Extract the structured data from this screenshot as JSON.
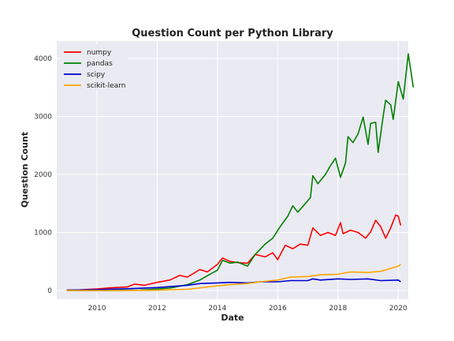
{
  "chart_data": {
    "type": "line",
    "title": "Question Count per Python Library",
    "xlabel": "Date",
    "ylabel": "Question Count",
    "xlim": [
      "2008-09",
      "2020-05"
    ],
    "ylim": [
      -150,
      4300
    ],
    "xticks": [
      "2010",
      "2012",
      "2014",
      "2016",
      "2018",
      "2020"
    ],
    "yticks": [
      0,
      1000,
      2000,
      3000,
      4000
    ],
    "grid": true,
    "legend_position": "top-left",
    "background_color": "#eaeaf2",
    "x_unit": "month",
    "series": [
      {
        "name": "numpy",
        "color": "#ff0000",
        "points": [
          [
            "2009-01",
            5
          ],
          [
            "2009-06",
            10
          ],
          [
            "2010-01",
            25
          ],
          [
            "2010-06",
            45
          ],
          [
            "2011-01",
            60
          ],
          [
            "2011-04",
            110
          ],
          [
            "2011-08",
            90
          ],
          [
            "2012-01",
            140
          ],
          [
            "2012-06",
            180
          ],
          [
            "2012-10",
            260
          ],
          [
            "2013-01",
            230
          ],
          [
            "2013-06",
            360
          ],
          [
            "2013-09",
            320
          ],
          [
            "2014-01",
            450
          ],
          [
            "2014-03",
            560
          ],
          [
            "2014-06",
            500
          ],
          [
            "2014-09",
            480
          ],
          [
            "2015-01",
            470
          ],
          [
            "2015-04",
            620
          ],
          [
            "2015-08",
            580
          ],
          [
            "2015-11",
            650
          ],
          [
            "2016-01",
            530
          ],
          [
            "2016-04",
            780
          ],
          [
            "2016-07",
            720
          ],
          [
            "2016-10",
            800
          ],
          [
            "2017-01",
            780
          ],
          [
            "2017-03",
            1080
          ],
          [
            "2017-06",
            950
          ],
          [
            "2017-09",
            1000
          ],
          [
            "2017-12",
            950
          ],
          [
            "2018-02",
            1170
          ],
          [
            "2018-03",
            980
          ],
          [
            "2018-06",
            1040
          ],
          [
            "2018-09",
            1000
          ],
          [
            "2018-12",
            900
          ],
          [
            "2019-02",
            1010
          ],
          [
            "2019-04",
            1210
          ],
          [
            "2019-06",
            1100
          ],
          [
            "2019-08",
            900
          ],
          [
            "2019-10",
            1080
          ],
          [
            "2019-12",
            1300
          ],
          [
            "2020-01",
            1280
          ],
          [
            "2020-02",
            1120
          ]
        ]
      },
      {
        "name": "pandas",
        "color": "#008000",
        "points": [
          [
            "2009-01",
            0
          ],
          [
            "2010-06",
            0
          ],
          [
            "2011-06",
            5
          ],
          [
            "2012-06",
            40
          ],
          [
            "2013-01",
            100
          ],
          [
            "2013-06",
            180
          ],
          [
            "2013-10",
            280
          ],
          [
            "2014-01",
            350
          ],
          [
            "2014-03",
            520
          ],
          [
            "2014-06",
            470
          ],
          [
            "2014-09",
            490
          ],
          [
            "2015-01",
            420
          ],
          [
            "2015-04",
            620
          ],
          [
            "2015-08",
            800
          ],
          [
            "2015-11",
            900
          ],
          [
            "2016-02",
            1100
          ],
          [
            "2016-05",
            1280
          ],
          [
            "2016-07",
            1460
          ],
          [
            "2016-09",
            1350
          ],
          [
            "2016-12",
            1500
          ],
          [
            "2017-02",
            1600
          ],
          [
            "2017-03",
            1980
          ],
          [
            "2017-05",
            1840
          ],
          [
            "2017-08",
            2000
          ],
          [
            "2017-10",
            2150
          ],
          [
            "2017-12",
            2280
          ],
          [
            "2018-02",
            1950
          ],
          [
            "2018-04",
            2200
          ],
          [
            "2018-05",
            2650
          ],
          [
            "2018-07",
            2550
          ],
          [
            "2018-09",
            2700
          ],
          [
            "2018-11",
            2990
          ],
          [
            "2019-01",
            2520
          ],
          [
            "2019-02",
            2880
          ],
          [
            "2019-04",
            2900
          ],
          [
            "2019-05",
            2380
          ],
          [
            "2019-07",
            3000
          ],
          [
            "2019-08",
            3280
          ],
          [
            "2019-10",
            3200
          ],
          [
            "2019-11",
            2950
          ],
          [
            "2020-01",
            3600
          ],
          [
            "2020-03",
            3300
          ],
          [
            "2020-05",
            4080
          ],
          [
            "2020-07",
            3500
          ]
        ]
      },
      {
        "name": "scipy",
        "color": "#0000cd",
        "points": [
          [
            "2009-01",
            5
          ],
          [
            "2010-01",
            15
          ],
          [
            "2011-01",
            30
          ],
          [
            "2012-01",
            50
          ],
          [
            "2013-01",
            90
          ],
          [
            "2013-06",
            120
          ],
          [
            "2014-01",
            130
          ],
          [
            "2014-06",
            140
          ],
          [
            "2015-01",
            130
          ],
          [
            "2015-06",
            150
          ],
          [
            "2016-01",
            150
          ],
          [
            "2016-06",
            170
          ],
          [
            "2017-01",
            170
          ],
          [
            "2017-03",
            200
          ],
          [
            "2017-06",
            180
          ],
          [
            "2018-01",
            200
          ],
          [
            "2018-06",
            190
          ],
          [
            "2019-01",
            200
          ],
          [
            "2019-06",
            170
          ],
          [
            "2020-01",
            180
          ],
          [
            "2020-02",
            150
          ]
        ]
      },
      {
        "name": "scikit-learn",
        "color": "#ffa500",
        "points": [
          [
            "2009-01",
            0
          ],
          [
            "2011-01",
            0
          ],
          [
            "2012-01",
            5
          ],
          [
            "2013-01",
            20
          ],
          [
            "2014-01",
            80
          ],
          [
            "2014-06",
            100
          ],
          [
            "2015-01",
            120
          ],
          [
            "2015-06",
            150
          ],
          [
            "2016-01",
            180
          ],
          [
            "2016-06",
            230
          ],
          [
            "2017-01",
            240
          ],
          [
            "2017-06",
            270
          ],
          [
            "2018-01",
            280
          ],
          [
            "2018-06",
            320
          ],
          [
            "2019-01",
            310
          ],
          [
            "2019-06",
            330
          ],
          [
            "2019-10",
            380
          ],
          [
            "2020-01",
            420
          ],
          [
            "2020-02",
            450
          ]
        ]
      }
    ]
  }
}
